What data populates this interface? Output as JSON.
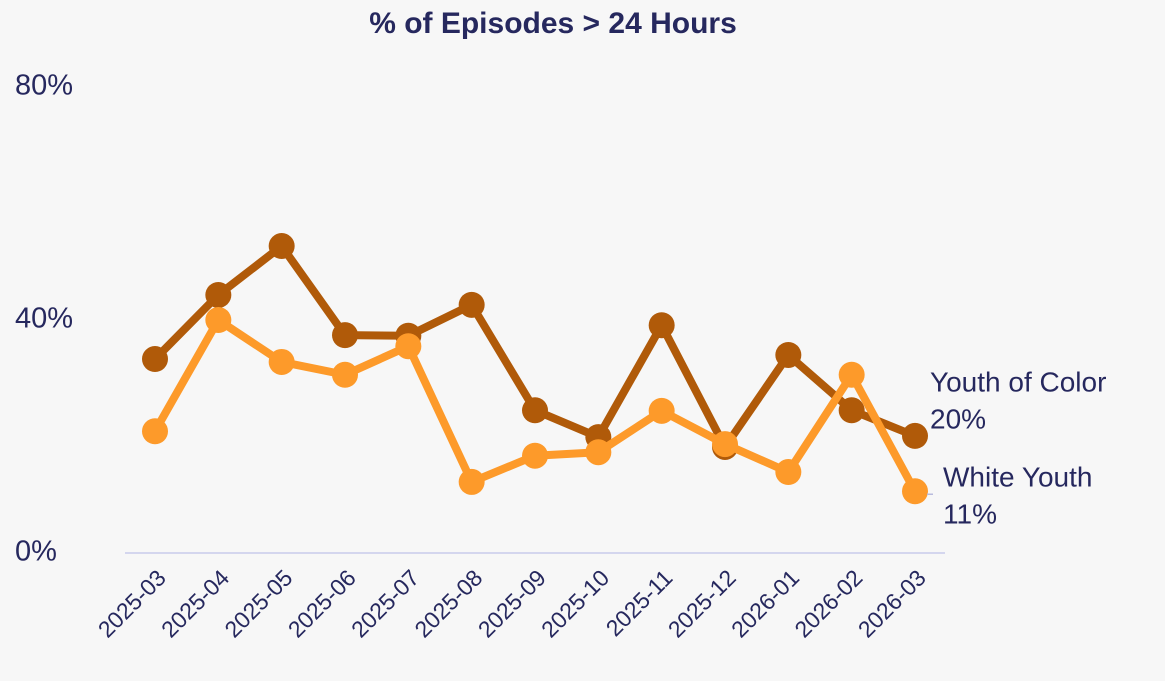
{
  "chart_data": {
    "type": "line",
    "title": "% of Episodes > 24 Hours",
    "categories": [
      "2025-03",
      "2025-04",
      "2025-05",
      "2025-06",
      "2025-07",
      "2025-08",
      "2025-09",
      "2025-10",
      "2025-11",
      "2025-12",
      "2026-01",
      "2026-02",
      "2026-03"
    ],
    "series": [
      {
        "name": "Youth of Color",
        "color": "#b05a09",
        "values": [
          33.3,
          44.3,
          52.7,
          37.4,
          37.3,
          42.6,
          24.5,
          19.9,
          39.1,
          18.2,
          34.0,
          24.5,
          20.1
        ],
        "value_labels": [
          null,
          null,
          null,
          null,
          null,
          null,
          null,
          null,
          null,
          null,
          null,
          null,
          "20%"
        ]
      },
      {
        "name": "White Youth",
        "color": "#fd9a2a",
        "values": [
          20.9,
          40.0,
          32.8,
          30.6,
          35.5,
          12.2,
          16.7,
          17.3,
          24.4,
          18.7,
          13.9,
          30.6,
          10.6
        ],
        "value_labels": [
          null,
          null,
          null,
          null,
          null,
          null,
          null,
          null,
          null,
          null,
          null,
          null,
          "11%"
        ]
      }
    ],
    "ylim": [
      0,
      80
    ],
    "yticks": [
      {
        "value": 0,
        "label": "0%"
      },
      {
        "value": 40,
        "label": "40%"
      },
      {
        "value": 80,
        "label": "80%"
      }
    ]
  }
}
